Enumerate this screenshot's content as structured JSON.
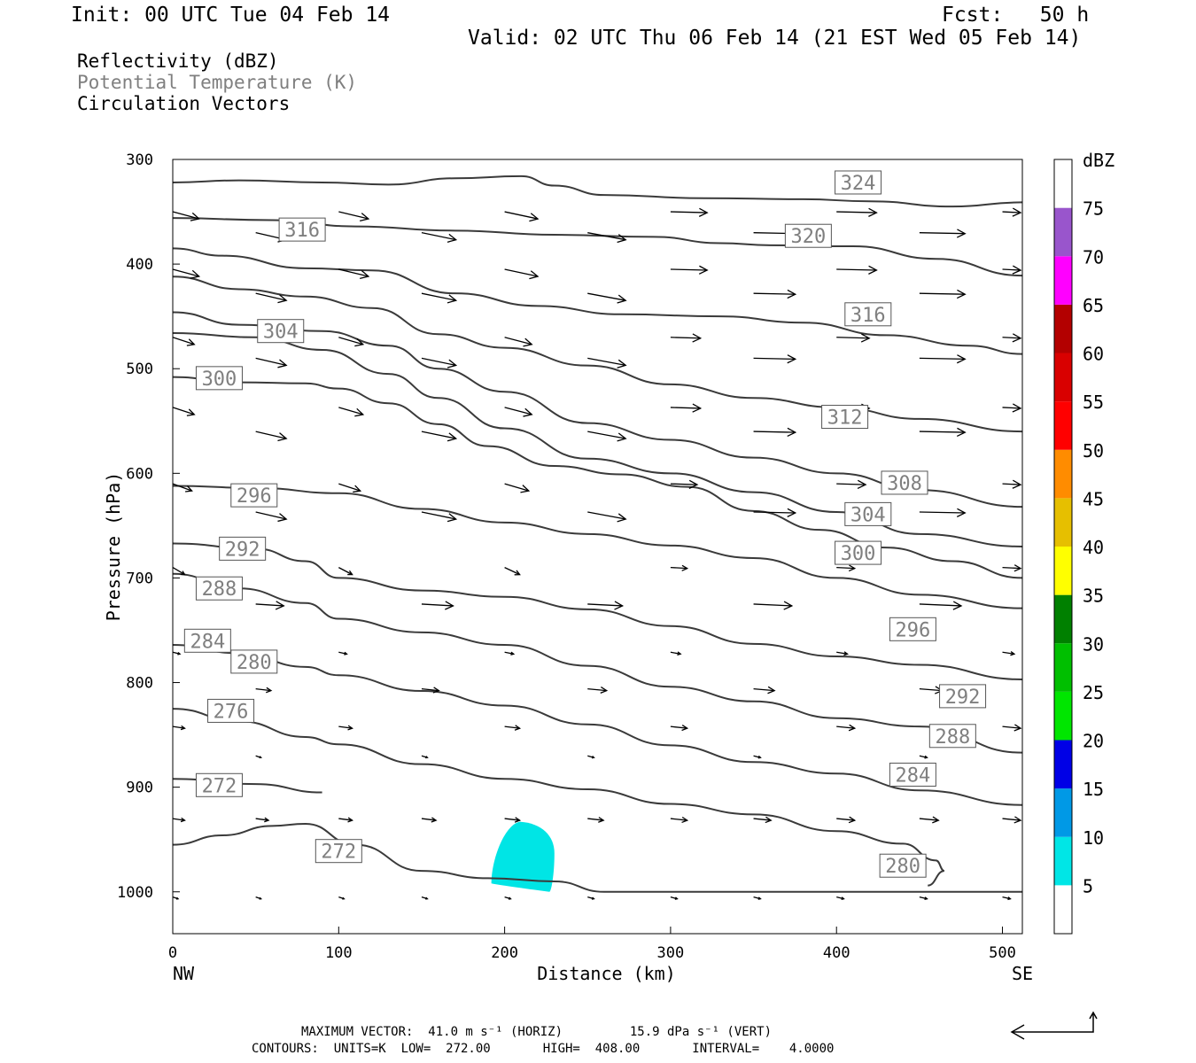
{
  "header": {
    "init": "Init: 00 UTC Tue 04 Feb 14",
    "fcst": "Fcst:   50 h",
    "valid": "Valid: 02 UTC Thu 06 Feb 14 (21 EST Wed 05 Feb 14)"
  },
  "fields": {
    "reflectivity": "Reflectivity (dBZ)",
    "theta": "Potential Temperature (K)",
    "vectors": "Circulation Vectors"
  },
  "footer": {
    "max_vector": "MAXIMUM VECTOR:  41.0 m s⁻¹ (HORIZ)         15.9 dPa s⁻¹ (VERT)",
    "contours": "CONTOURS:  UNITS=K  LOW=  272.00       HIGH=  408.00       INTERVAL=    4.0000"
  },
  "colors": {
    "contour": "#3a3a3a",
    "refl_patch": "#00e5e5",
    "theta_label": "#7f7f7f"
  },
  "chart_data": {
    "type": "cross-section",
    "xlabel": "Distance (km)",
    "ylabel": "Pressure (hPa)",
    "xlim": [
      0,
      512
    ],
    "ylim": [
      1040,
      300
    ],
    "x_ticks": [
      0,
      100,
      200,
      300,
      400,
      500
    ],
    "y_ticks": [
      300,
      400,
      500,
      600,
      700,
      800,
      900,
      1000
    ],
    "end_labels": {
      "left": "NW",
      "right": "SE"
    },
    "colorbar": {
      "title": "dBZ",
      "levels": [
        5,
        10,
        15,
        20,
        25,
        30,
        35,
        40,
        45,
        50,
        55,
        60,
        65,
        70,
        75
      ],
      "colors": [
        "#00e6e6",
        "#0099e6",
        "#0000e6",
        "#00e600",
        "#00bf00",
        "#008000",
        "#ffff00",
        "#e6bf00",
        "#ff8c00",
        "#ff0000",
        "#d90000",
        "#b30000",
        "#ff00ff",
        "#9955cc",
        "#ffffff"
      ]
    },
    "theta_contours": [
      {
        "value": 324,
        "points": [
          [
            0,
            322
          ],
          [
            40,
            320
          ],
          [
            90,
            322
          ],
          [
            130,
            324
          ],
          [
            170,
            318
          ],
          [
            210,
            316
          ],
          [
            230,
            325
          ],
          [
            260,
            334
          ],
          [
            320,
            337
          ],
          [
            380,
            338
          ],
          [
            420,
            340
          ],
          [
            470,
            345
          ],
          [
            512,
            341
          ]
        ],
        "labels": [
          [
            413,
            322
          ]
        ]
      },
      {
        "value": 320,
        "points": [
          [
            0,
            356
          ],
          [
            60,
            358
          ],
          [
            110,
            364
          ],
          [
            170,
            368
          ],
          [
            230,
            372
          ],
          [
            290,
            374
          ],
          [
            330,
            380
          ],
          [
            360,
            382
          ],
          [
            410,
            383
          ],
          [
            460,
            395
          ],
          [
            512,
            411
          ]
        ],
        "labels": [
          [
            383,
            373
          ]
        ]
      },
      {
        "value": 316,
        "points": [
          [
            0,
            385
          ],
          [
            30,
            392
          ],
          [
            80,
            404
          ],
          [
            120,
            406
          ],
          [
            170,
            428
          ],
          [
            220,
            440
          ],
          [
            270,
            448
          ],
          [
            330,
            450
          ],
          [
            380,
            456
          ],
          [
            430,
            468
          ],
          [
            480,
            478
          ],
          [
            512,
            486
          ]
        ],
        "labels": [
          [
            419,
            448
          ],
          [
            78,
            367
          ]
        ]
      },
      {
        "value": 312,
        "points": [
          [
            0,
            412
          ],
          [
            40,
            424
          ],
          [
            80,
            431
          ],
          [
            120,
            442
          ],
          [
            160,
            467
          ],
          [
            200,
            480
          ],
          [
            250,
            497
          ],
          [
            300,
            515
          ],
          [
            350,
            528
          ],
          [
            400,
            537
          ],
          [
            450,
            548
          ],
          [
            512,
            560
          ]
        ],
        "labels": [
          [
            405,
            546
          ]
        ]
      },
      {
        "value": 308,
        "points": [
          [
            0,
            446
          ],
          [
            40,
            458
          ],
          [
            90,
            464
          ],
          [
            130,
            478
          ],
          [
            160,
            500
          ],
          [
            200,
            522
          ],
          [
            250,
            552
          ],
          [
            300,
            568
          ],
          [
            350,
            585
          ],
          [
            400,
            600
          ],
          [
            450,
            616
          ],
          [
            512,
            632
          ]
        ],
        "labels": [
          [
            441,
            609
          ]
        ]
      },
      {
        "value": 304,
        "points": [
          [
            0,
            466
          ],
          [
            50,
            470
          ],
          [
            90,
            482
          ],
          [
            130,
            505
          ],
          [
            160,
            528
          ],
          [
            200,
            557
          ],
          [
            250,
            586
          ],
          [
            300,
            600
          ],
          [
            350,
            618
          ],
          [
            400,
            637
          ],
          [
            450,
            658
          ],
          [
            512,
            670
          ]
        ],
        "labels": [
          [
            419,
            639
          ],
          [
            65,
            464
          ]
        ]
      },
      {
        "value": 300,
        "points": [
          [
            0,
            508
          ],
          [
            40,
            513
          ],
          [
            80,
            514
          ],
          [
            100,
            519
          ],
          [
            130,
            533
          ],
          [
            160,
            553
          ],
          [
            190,
            574
          ],
          [
            230,
            593
          ],
          [
            270,
            601
          ],
          [
            310,
            613
          ],
          [
            350,
            636
          ],
          [
            390,
            654
          ],
          [
            430,
            671
          ],
          [
            470,
            684
          ],
          [
            512,
            700
          ]
        ],
        "labels": [
          [
            413,
            676
          ],
          [
            28,
            509
          ]
        ]
      },
      {
        "value": 296,
        "points": [
          [
            0,
            612
          ],
          [
            50,
            614
          ],
          [
            100,
            619
          ],
          [
            150,
            634
          ],
          [
            200,
            647
          ],
          [
            250,
            658
          ],
          [
            300,
            669
          ],
          [
            350,
            681
          ],
          [
            400,
            700
          ],
          [
            450,
            716
          ],
          [
            512,
            729
          ]
        ],
        "labels": [
          [
            446,
            749
          ],
          [
            49,
            621
          ]
        ]
      },
      {
        "value": 292,
        "points": [
          [
            0,
            667
          ],
          [
            50,
            672
          ],
          [
            80,
            684
          ],
          [
            100,
            700
          ],
          [
            150,
            712
          ],
          [
            200,
            718
          ],
          [
            250,
            730
          ],
          [
            300,
            746
          ],
          [
            350,
            763
          ],
          [
            400,
            775
          ],
          [
            450,
            783
          ],
          [
            512,
            797
          ]
        ],
        "labels": [
          [
            476,
            813
          ],
          [
            42,
            672
          ]
        ]
      },
      {
        "value": 288,
        "points": [
          [
            0,
            696
          ],
          [
            40,
            710
          ],
          [
            80,
            724
          ],
          [
            100,
            739
          ],
          [
            150,
            752
          ],
          [
            200,
            764
          ],
          [
            250,
            784
          ],
          [
            300,
            804
          ],
          [
            350,
            818
          ],
          [
            400,
            834
          ],
          [
            450,
            842
          ],
          [
            512,
            867
          ]
        ],
        "labels": [
          [
            470,
            851
          ],
          [
            28,
            710
          ]
        ]
      },
      {
        "value": 284,
        "points": [
          [
            0,
            764
          ],
          [
            40,
            772
          ],
          [
            80,
            785
          ],
          [
            100,
            793
          ],
          [
            150,
            808
          ],
          [
            200,
            822
          ],
          [
            250,
            840
          ],
          [
            300,
            860
          ],
          [
            350,
            876
          ],
          [
            400,
            887
          ],
          [
            450,
            903
          ],
          [
            512,
            917
          ]
        ],
        "labels": [
          [
            446,
            888
          ],
          [
            21,
            760
          ]
        ]
      },
      {
        "value": 280,
        "points": [
          [
            0,
            825
          ],
          [
            40,
            837
          ],
          [
            80,
            852
          ],
          [
            100,
            859
          ],
          [
            150,
            878
          ],
          [
            200,
            892
          ],
          [
            250,
            902
          ],
          [
            300,
            916
          ],
          [
            350,
            926
          ],
          [
            400,
            942
          ],
          [
            440,
            954
          ],
          [
            460,
            970
          ],
          [
            465,
            980
          ],
          [
            455,
            994
          ]
        ],
        "labels": [
          [
            440,
            975
          ],
          [
            49,
            780
          ]
        ]
      },
      {
        "value": 276,
        "points": [
          [
            0,
            892
          ],
          [
            50,
            897
          ],
          [
            90,
            905
          ]
        ],
        "labels": [
          [
            35,
            827
          ]
        ]
      },
      {
        "value": 272,
        "points": [
          [
            0,
            955
          ],
          [
            30,
            946
          ],
          [
            60,
            937
          ],
          [
            80,
            935
          ],
          [
            110,
            955
          ],
          [
            150,
            980
          ],
          [
            190,
            987
          ],
          [
            230,
            990
          ],
          [
            260,
            1000
          ],
          [
            512,
            1000
          ]
        ],
        "labels": [
          [
            100,
            961
          ],
          [
            28,
            898
          ]
        ]
      }
    ],
    "reflectivity_patch": {
      "dbz_min": 5,
      "dbz_max": 10,
      "x_range": [
        192,
        230
      ],
      "p_range": [
        933,
        1000
      ]
    }
  }
}
